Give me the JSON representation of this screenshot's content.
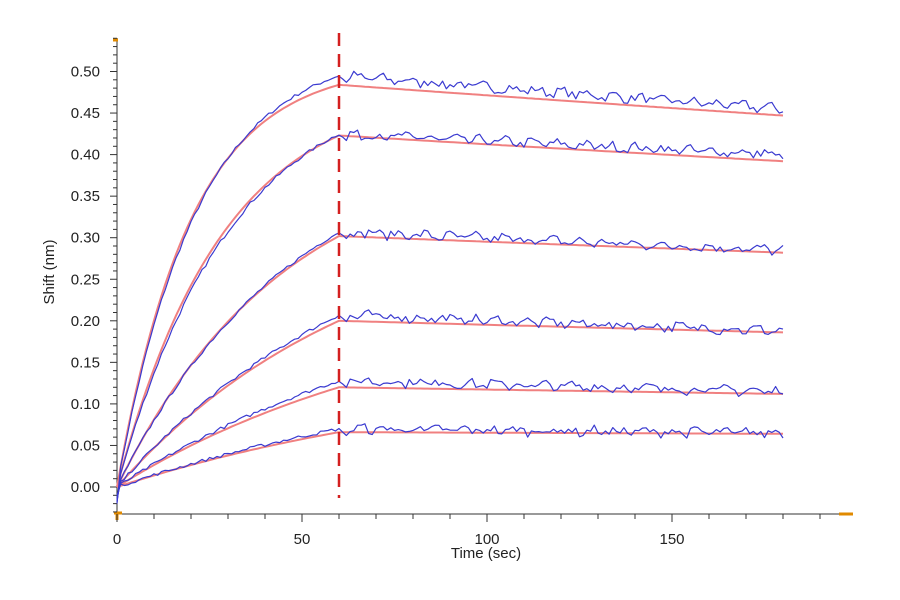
{
  "chart_data": {
    "type": "line",
    "title": "",
    "xlabel": "Time (sec)",
    "ylabel": "Shift (nm)",
    "xlim": [
      0,
      197
    ],
    "ylim": [
      -0.03,
      0.545
    ],
    "x_ticks": [
      0,
      50,
      100,
      150
    ],
    "x_tick_labels": [
      "0",
      "50",
      "100",
      "150"
    ],
    "y_ticks": [
      0.0,
      0.05,
      0.1,
      0.15,
      0.2,
      0.25,
      0.3,
      0.35,
      0.4,
      0.45,
      0.5
    ],
    "y_tick_labels": [
      "0.00",
      "0.05",
      "0.10",
      "0.15",
      "0.20",
      "0.25",
      "0.30",
      "0.35",
      "0.40",
      "0.45",
      "0.50"
    ],
    "grid": false,
    "legend": "none",
    "association_end": 60,
    "dissociation_end": 180,
    "vertical_marker": {
      "x": 60,
      "color": "#d42020",
      "style": "dashed"
    },
    "colors": {
      "measured": "#3a3ad0",
      "fit": "#f08080",
      "axis_accent": "#e08a00"
    },
    "curves": [
      {
        "plateau_at_60": 0.484,
        "measured_at_60": 0.495,
        "end_fit": 0.447,
        "end_measured": 0.455
      },
      {
        "plateau_at_60": 0.423,
        "measured_at_60": 0.425,
        "end_fit": 0.392,
        "end_measured": 0.4
      },
      {
        "plateau_at_60": 0.302,
        "measured_at_60": 0.307,
        "end_fit": 0.282,
        "end_measured": 0.285
      },
      {
        "plateau_at_60": 0.2,
        "measured_at_60": 0.207,
        "end_fit": 0.186,
        "end_measured": 0.188
      },
      {
        "plateau_at_60": 0.12,
        "measured_at_60": 0.128,
        "end_fit": 0.112,
        "end_measured": 0.115
      },
      {
        "plateau_at_60": 0.066,
        "measured_at_60": 0.07,
        "end_fit": 0.064,
        "end_measured": 0.065
      }
    ]
  }
}
